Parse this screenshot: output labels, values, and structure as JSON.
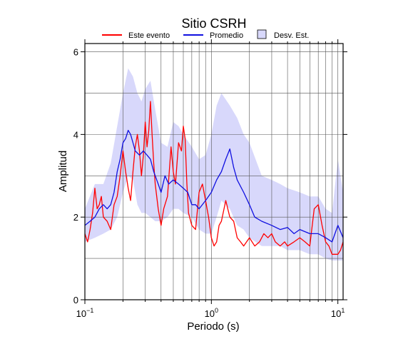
{
  "chart_data": {
    "type": "line",
    "title": "Sitio CSRH",
    "xlabel": "Periodo (s)",
    "ylabel": "Amplitud",
    "x_scale": "log",
    "xlim": [
      0.1,
      11
    ],
    "ylim": [
      0,
      6.2
    ],
    "y_ticks": [
      {
        "value": 0,
        "label": "0"
      },
      {
        "value": 2,
        "label": "2"
      },
      {
        "value": 4,
        "label": "4"
      },
      {
        "value": 6,
        "label": "6"
      }
    ],
    "x_ticks": [
      {
        "value": 0.1,
        "base": "10",
        "exp": "−1"
      },
      {
        "value": 1,
        "base": "10",
        "exp": "0"
      },
      {
        "value": 10,
        "base": "10",
        "exp": "1"
      }
    ],
    "grid": true,
    "legend_position": "top-center",
    "legend": [
      {
        "label": "Este evento",
        "kind": "line",
        "color": "#ff0000"
      },
      {
        "label": "Promedio",
        "kind": "line",
        "color": "#0000ff"
      },
      {
        "label": "Desv. Est.",
        "kind": "band",
        "color": "#d8d8fb"
      }
    ],
    "colors": {
      "event": "#ff0000",
      "mean": "#1010e0",
      "band": "#d8d8fb"
    },
    "band": {
      "name": "Desv. Est.",
      "x": [
        0.1,
        0.12,
        0.14,
        0.16,
        0.18,
        0.2,
        0.22,
        0.24,
        0.26,
        0.28,
        0.3,
        0.33,
        0.36,
        0.4,
        0.45,
        0.5,
        0.55,
        0.6,
        0.7,
        0.8,
        0.9,
        1.0,
        1.1,
        1.2,
        1.4,
        1.6,
        1.8,
        2.0,
        2.5,
        3.0,
        3.5,
        4.0,
        5.0,
        6.0,
        7.0,
        8.0,
        9.0,
        10.0,
        11.0
      ],
      "upper": [
        2.2,
        2.8,
        2.8,
        3.3,
        4.2,
        5.0,
        5.6,
        5.4,
        5.0,
        4.8,
        5.1,
        5.3,
        4.6,
        3.8,
        3.7,
        4.3,
        4.2,
        4.0,
        3.7,
        3.4,
        3.5,
        4.0,
        4.7,
        5.0,
        4.7,
        4.4,
        4.0,
        3.8,
        3.0,
        2.9,
        2.8,
        2.7,
        2.6,
        2.5,
        2.5,
        2.2,
        2.1,
        3.4,
        2.6
      ],
      "lower": [
        1.4,
        1.5,
        1.6,
        1.7,
        2.0,
        2.6,
        3.0,
        2.9,
        2.3,
        2.1,
        2.1,
        2.0,
        1.9,
        1.9,
        2.0,
        2.2,
        2.2,
        2.1,
        2.0,
        1.7,
        1.6,
        1.6,
        2.0,
        2.4,
        2.2,
        1.8,
        1.7,
        1.5,
        1.3,
        1.3,
        1.3,
        1.2,
        1.2,
        1.1,
        1.1,
        1.0,
        0.95,
        0.95,
        0.95
      ]
    },
    "series": [
      {
        "name": "Este evento",
        "x": [
          0.1,
          0.105,
          0.11,
          0.115,
          0.12,
          0.125,
          0.13,
          0.135,
          0.14,
          0.15,
          0.16,
          0.17,
          0.18,
          0.19,
          0.2,
          0.21,
          0.22,
          0.23,
          0.24,
          0.25,
          0.26,
          0.27,
          0.28,
          0.29,
          0.3,
          0.31,
          0.32,
          0.33,
          0.34,
          0.35,
          0.36,
          0.38,
          0.4,
          0.42,
          0.45,
          0.48,
          0.5,
          0.52,
          0.55,
          0.58,
          0.6,
          0.62,
          0.64,
          0.66,
          0.7,
          0.75,
          0.8,
          0.85,
          0.9,
          0.95,
          1.0,
          1.05,
          1.1,
          1.15,
          1.2,
          1.3,
          1.4,
          1.5,
          1.6,
          1.7,
          1.8,
          2.0,
          2.2,
          2.4,
          2.6,
          2.8,
          3.0,
          3.2,
          3.5,
          3.8,
          4.0,
          4.5,
          5.0,
          5.5,
          6.0,
          6.5,
          7.0,
          7.5,
          8.0,
          8.5,
          9.0,
          9.5,
          10.0,
          10.5,
          11.0
        ],
        "y": [
          1.6,
          1.4,
          1.7,
          2.1,
          2.7,
          2.2,
          2.3,
          2.5,
          2.0,
          1.9,
          1.7,
          2.3,
          2.5,
          3.0,
          3.6,
          3.1,
          2.7,
          2.4,
          3.1,
          3.7,
          4.0,
          3.6,
          3.0,
          3.5,
          4.3,
          3.7,
          4.1,
          4.8,
          4.0,
          3.3,
          2.8,
          2.2,
          1.8,
          2.2,
          2.5,
          3.7,
          3.1,
          2.8,
          3.8,
          3.6,
          4.2,
          3.9,
          2.8,
          2.1,
          1.8,
          1.7,
          2.6,
          2.8,
          2.4,
          2.0,
          1.5,
          1.3,
          1.4,
          1.8,
          1.9,
          2.4,
          2.0,
          1.9,
          1.5,
          1.4,
          1.3,
          1.5,
          1.3,
          1.4,
          1.6,
          1.5,
          1.6,
          1.4,
          1.3,
          1.4,
          1.3,
          1.4,
          1.5,
          1.4,
          1.3,
          2.2,
          2.3,
          1.8,
          1.4,
          1.3,
          1.1,
          1.1,
          1.1,
          1.2,
          1.4
        ]
      },
      {
        "name": "Promedio",
        "x": [
          0.1,
          0.11,
          0.12,
          0.13,
          0.14,
          0.15,
          0.16,
          0.17,
          0.18,
          0.19,
          0.2,
          0.21,
          0.22,
          0.23,
          0.24,
          0.25,
          0.27,
          0.29,
          0.31,
          0.33,
          0.35,
          0.38,
          0.4,
          0.43,
          0.46,
          0.5,
          0.55,
          0.6,
          0.65,
          0.7,
          0.75,
          0.8,
          0.9,
          1.0,
          1.1,
          1.2,
          1.3,
          1.4,
          1.5,
          1.6,
          1.8,
          2.0,
          2.2,
          2.5,
          3.0,
          3.5,
          4.0,
          4.5,
          5.0,
          6.0,
          7.0,
          8.0,
          9.0,
          10.0,
          11.0
        ],
        "y": [
          1.8,
          1.9,
          2.0,
          2.2,
          2.3,
          2.2,
          2.3,
          2.6,
          3.1,
          3.4,
          3.8,
          3.9,
          4.1,
          4.0,
          3.8,
          3.6,
          3.5,
          3.6,
          3.5,
          3.4,
          3.1,
          2.8,
          2.6,
          3.0,
          2.8,
          2.9,
          2.8,
          2.7,
          2.6,
          2.3,
          2.3,
          2.2,
          2.4,
          2.6,
          2.9,
          3.1,
          3.4,
          3.65,
          3.2,
          2.9,
          2.6,
          2.3,
          2.0,
          1.9,
          1.8,
          1.7,
          1.75,
          1.6,
          1.7,
          1.6,
          1.6,
          1.5,
          1.4,
          1.8,
          1.5
        ]
      }
    ]
  }
}
